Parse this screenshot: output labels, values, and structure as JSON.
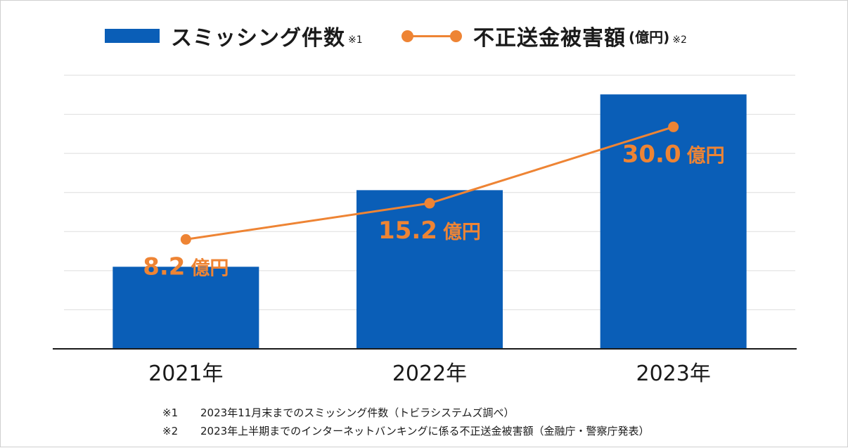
{
  "legend": {
    "bar_label": "スミッシング件数",
    "bar_note": "※1",
    "line_label": "不正送金被害額",
    "line_unit": "(億円)",
    "line_note": "※2"
  },
  "colors": {
    "bar": "#0a5eb7",
    "line": "#ee8434",
    "grid": "#dedede",
    "axis": "#1a1a1a"
  },
  "chart_data": {
    "type": "bar",
    "categories": [
      "2021年",
      "2022年",
      "2023年"
    ],
    "series": [
      {
        "name": "スミッシング件数",
        "type": "bar",
        "values": [
          30,
          58,
          93
        ]
      },
      {
        "name": "不正送金被害額",
        "type": "line",
        "unit": "億円",
        "values": [
          8.2,
          15.2,
          30.0
        ]
      }
    ],
    "data_labels": [
      "8.2",
      "15.2",
      "30.0"
    ],
    "data_label_unit": "億円",
    "ylim": [
      0,
      100
    ],
    "line_ylim": [
      -13,
      40
    ],
    "grid": true,
    "gridline_count": 7,
    "legend_position": "top"
  },
  "footnotes": [
    {
      "mark": "※1",
      "text": "2023年11月末までのスミッシング件数（トビラシステムズ調べ）"
    },
    {
      "mark": "※2",
      "text": "2023年上半期までのインターネットバンキングに係る不正送金被害額（金融庁・警察庁発表）"
    }
  ]
}
